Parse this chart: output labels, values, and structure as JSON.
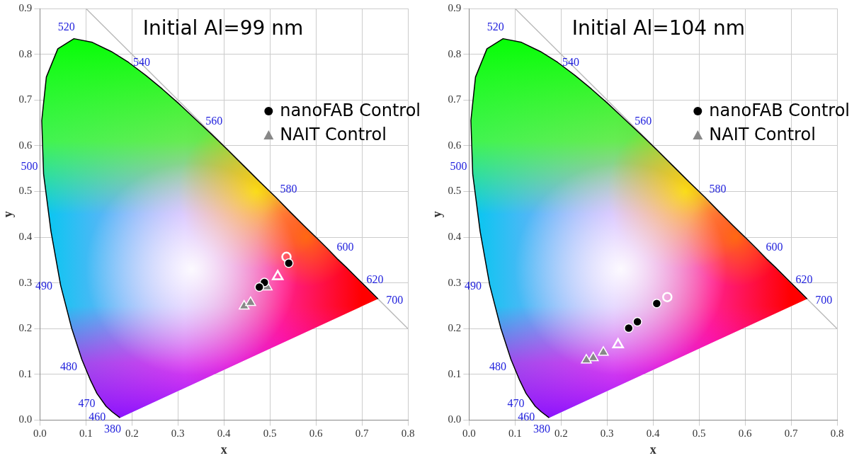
{
  "chart_data": [
    {
      "type": "scatter",
      "title": "Initial Al=99 nm",
      "xlabel": "x",
      "ylabel": "y",
      "xlim": [
        0,
        0.8
      ],
      "ylim": [
        0,
        0.9
      ],
      "xticks": [
        {
          "value": 0,
          "label": "0.0"
        },
        0.1,
        0.2,
        0.3,
        0.4,
        0.5,
        0.6,
        0.7,
        0.8
      ],
      "yticks": [
        {
          "value": 0,
          "label": "0.0"
        },
        0.1,
        0.2,
        0.3,
        0.4,
        0.5,
        0.6,
        0.7,
        0.8,
        0.9
      ],
      "grid": true,
      "legend": "top right",
      "series": [
        {
          "type": "line",
          "color": "#000000",
          "marker": "none",
          "x": [
            0.174,
            0.157,
            0.144,
            0.124,
            0.11,
            0.091,
            0.069,
            0.045,
            0.024,
            0.008,
            0.004,
            0.014,
            0.039,
            0.074,
            0.114,
            0.155,
            0.193,
            0.23,
            0.266,
            0.302,
            0.337,
            0.373,
            0.409,
            0.444,
            0.479,
            0.513,
            0.545,
            0.575,
            0.603,
            0.627,
            0.648,
            0.666,
            0.692,
            0.719,
            0.735
          ],
          "values": [
            0.005,
            0.018,
            0.03,
            0.058,
            0.087,
            0.133,
            0.201,
            0.295,
            0.413,
            0.538,
            0.655,
            0.75,
            0.812,
            0.834,
            0.826,
            0.806,
            0.782,
            0.754,
            0.724,
            0.692,
            0.659,
            0.625,
            0.59,
            0.555,
            0.52,
            0.487,
            0.454,
            0.424,
            0.397,
            0.373,
            0.351,
            0.334,
            0.308,
            0.281,
            0.265
          ]
        },
        {
          "type": "line",
          "color": "#bbbbbb",
          "marker": "none",
          "x": [
            0.1,
            0.8
          ],
          "values": [
            0.9,
            0.2
          ]
        },
        {
          "name": "nanoFAB Control",
          "marker": "circle",
          "color": "#000000",
          "x": [
            0.541,
            0.488,
            0.477
          ],
          "values": [
            0.343,
            0.301,
            0.291
          ]
        },
        {
          "name": "NAIT Control",
          "marker": "triangle",
          "color": "#888888",
          "x": [
            0.494,
            0.444,
            0.458
          ],
          "values": [
            0.291,
            0.249,
            0.257
          ]
        },
        {
          "marker": "circle",
          "color": "#ffffff",
          "x": [
            0.536
          ],
          "values": [
            0.357
          ]
        },
        {
          "marker": "triangle",
          "color": "#ffffff",
          "x": [
            0.517
          ],
          "values": [
            0.314
          ]
        }
      ],
      "annotations": [
        {
          "text": "380",
          "x": 0.1741,
          "y": 0.005
        },
        {
          "text": "460",
          "x": 0.144,
          "y": 0.0297
        },
        {
          "text": "470",
          "x": 0.1241,
          "y": 0.0578
        },
        {
          "text": "480",
          "x": 0.0913,
          "y": 0.1327
        },
        {
          "text": "490",
          "x": 0.0454,
          "y": 0.295
        },
        {
          "text": "500",
          "x": 0.0082,
          "y": 0.5384
        },
        {
          "text": "520",
          "x": 0.0743,
          "y": 0.8338
        },
        {
          "text": "540",
          "x": 0.2296,
          "y": 0.7543
        },
        {
          "text": "560",
          "x": 0.3731,
          "y": 0.6245
        },
        {
          "text": "580",
          "x": 0.5125,
          "y": 0.4866
        },
        {
          "text": "600",
          "x": 0.627,
          "y": 0.3725
        },
        {
          "text": "620",
          "x": 0.6915,
          "y": 0.3083
        },
        {
          "text": "700",
          "x": 0.7347,
          "y": 0.2653
        }
      ]
    },
    {
      "type": "scatter",
      "title": "Initial Al=104 nm",
      "xlabel": "x",
      "ylabel": "y",
      "xlim": [
        0,
        0.8
      ],
      "ylim": [
        0,
        0.9
      ],
      "xticks": [
        {
          "value": 0,
          "label": "0.0"
        },
        0.1,
        0.2,
        0.3,
        0.4,
        0.5,
        0.6,
        0.7,
        0.8
      ],
      "yticks": [
        {
          "value": 0,
          "label": "0.0"
        },
        0.1,
        0.2,
        0.3,
        0.4,
        0.5,
        0.6,
        0.7,
        0.8,
        0.9
      ],
      "grid": true,
      "legend": "top right",
      "series": [
        {
          "type": "line",
          "color": "#000000",
          "marker": "none",
          "x": [
            0.174,
            0.157,
            0.144,
            0.124,
            0.11,
            0.091,
            0.069,
            0.045,
            0.024,
            0.008,
            0.004,
            0.014,
            0.039,
            0.074,
            0.114,
            0.155,
            0.193,
            0.23,
            0.266,
            0.302,
            0.337,
            0.373,
            0.409,
            0.444,
            0.479,
            0.513,
            0.545,
            0.575,
            0.603,
            0.627,
            0.648,
            0.666,
            0.692,
            0.719,
            0.735
          ],
          "values": [
            0.005,
            0.018,
            0.03,
            0.058,
            0.087,
            0.133,
            0.201,
            0.295,
            0.413,
            0.538,
            0.655,
            0.75,
            0.812,
            0.834,
            0.826,
            0.806,
            0.782,
            0.754,
            0.724,
            0.692,
            0.659,
            0.625,
            0.59,
            0.555,
            0.52,
            0.487,
            0.454,
            0.424,
            0.397,
            0.373,
            0.351,
            0.334,
            0.308,
            0.281,
            0.265
          ]
        },
        {
          "type": "line",
          "color": "#bbbbbb",
          "marker": "none",
          "x": [
            0.1,
            0.8
          ],
          "values": [
            0.9,
            0.2
          ]
        },
        {
          "name": "nanoFAB Control",
          "marker": "circle",
          "color": "#000000",
          "x": [
            0.408,
            0.366,
            0.347
          ],
          "values": [
            0.255,
            0.215,
            0.201
          ]
        },
        {
          "name": "NAIT Control",
          "marker": "triangle",
          "color": "#888888",
          "x": [
            0.292,
            0.27,
            0.255
          ],
          "values": [
            0.148,
            0.136,
            0.131
          ]
        },
        {
          "marker": "circle",
          "color": "#ffffff",
          "x": [
            0.431
          ],
          "values": [
            0.269
          ]
        },
        {
          "marker": "triangle",
          "color": "#ffffff",
          "x": [
            0.324
          ],
          "values": [
            0.165
          ]
        }
      ],
      "annotations": [
        {
          "text": "380",
          "x": 0.1741,
          "y": 0.005
        },
        {
          "text": "460",
          "x": 0.144,
          "y": 0.0297
        },
        {
          "text": "470",
          "x": 0.1241,
          "y": 0.0578
        },
        {
          "text": "480",
          "x": 0.0913,
          "y": 0.1327
        },
        {
          "text": "490",
          "x": 0.0454,
          "y": 0.295
        },
        {
          "text": "500",
          "x": 0.0082,
          "y": 0.5384
        },
        {
          "text": "520",
          "x": 0.0743,
          "y": 0.8338
        },
        {
          "text": "540",
          "x": 0.2296,
          "y": 0.7543
        },
        {
          "text": "560",
          "x": 0.3731,
          "y": 0.6245
        },
        {
          "text": "580",
          "x": 0.5125,
          "y": 0.4866
        },
        {
          "text": "600",
          "x": 0.627,
          "y": 0.3725
        },
        {
          "text": "620",
          "x": 0.6915,
          "y": 0.3083
        },
        {
          "text": "700",
          "x": 0.7347,
          "y": 0.2653
        }
      ]
    }
  ]
}
